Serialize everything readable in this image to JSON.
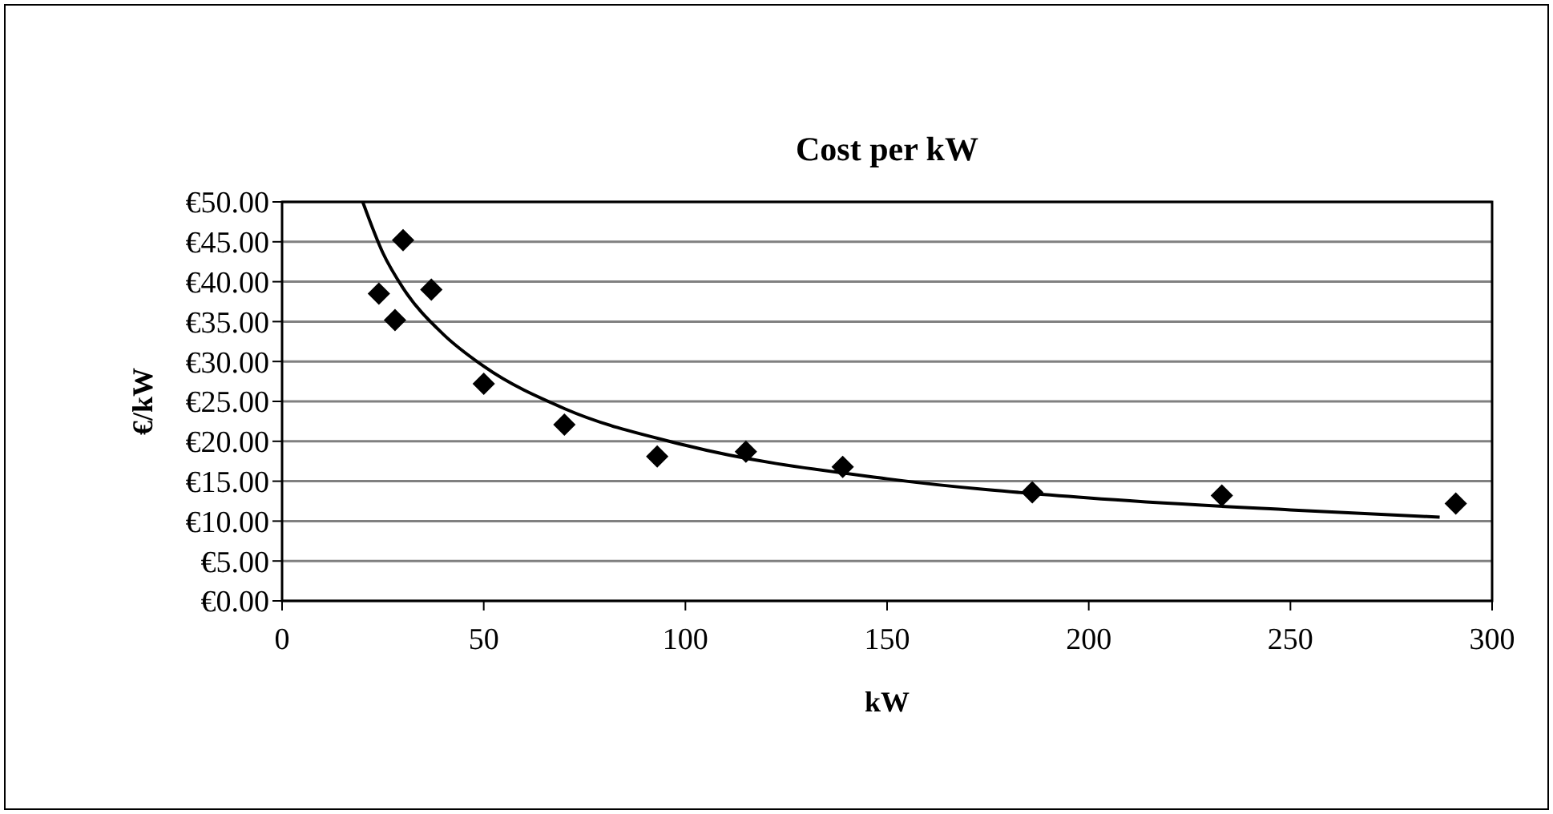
{
  "chart_data": {
    "type": "scatter",
    "title": "Cost per kW",
    "xlabel": "kW",
    "ylabel": "€/kW",
    "xlim": [
      0,
      300
    ],
    "xticks": [
      0,
      50,
      100,
      150,
      200,
      250,
      300
    ],
    "ylim": [
      0,
      50
    ],
    "yticks": [
      {
        "value": 0,
        "label": "€0.00"
      },
      {
        "value": 5,
        "label": "€5.00"
      },
      {
        "value": 10,
        "label": "€10.00"
      },
      {
        "value": 15,
        "label": "€15.00"
      },
      {
        "value": 20,
        "label": "€20.00"
      },
      {
        "value": 25,
        "label": "€25.00"
      },
      {
        "value": 30,
        "label": "€30.00"
      },
      {
        "value": 35,
        "label": "€35.00"
      },
      {
        "value": 40,
        "label": "€40.00"
      },
      {
        "value": 45,
        "label": "€45.00"
      },
      {
        "value": 50,
        "label": "€50.00"
      }
    ],
    "grid": "y",
    "marker": "diamond",
    "series": [
      {
        "color": "#000000",
        "x": [
          24,
          28,
          30,
          37,
          50,
          70,
          93,
          115,
          139,
          186,
          233,
          291
        ],
        "values": [
          38.5,
          35.2,
          45.2,
          39,
          27.2,
          22.1,
          18.1,
          18.7,
          16.8,
          13.6,
          13.2,
          12.2
        ]
      },
      {
        "type": "line",
        "marker": "none",
        "color": "#000000",
        "x": [
          20,
          25,
          30,
          40,
          50,
          70,
          100,
          150,
          200,
          250,
          287
        ],
        "values": [
          50,
          43.6,
          39.2,
          33.4,
          29.4,
          24.1,
          19.5,
          15.3,
          12.9,
          11.4,
          10.5
        ]
      }
    ]
  }
}
